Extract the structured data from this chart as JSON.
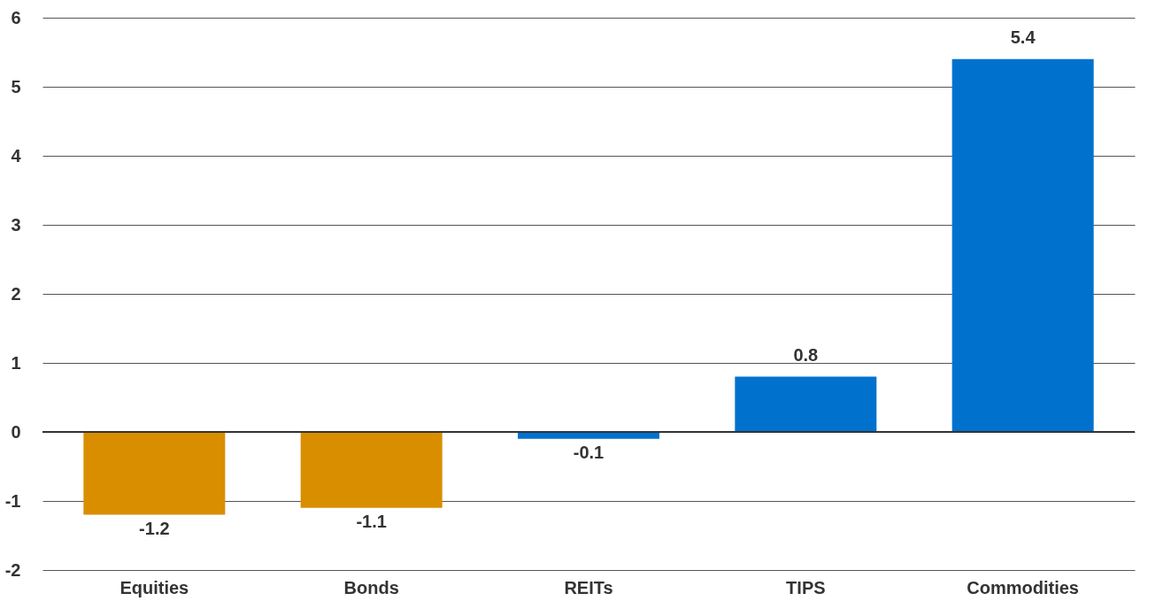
{
  "chart_data": {
    "type": "bar",
    "categories": [
      "Equities",
      "Bonds",
      "REITs",
      "TIPS",
      "Commodities"
    ],
    "values": [
      -1.2,
      -1.1,
      -0.1,
      0.8,
      5.4
    ],
    "colors": [
      "#d98e00",
      "#d98e00",
      "#0072ce",
      "#0072ce",
      "#0072ce"
    ],
    "ylim": [
      -2,
      6
    ],
    "yticks": [
      -2,
      -1,
      0,
      1,
      2,
      3,
      4,
      5,
      6
    ],
    "grid": "y",
    "data_labels": true,
    "ref_lines": [
      {
        "axis": "y",
        "value": 0,
        "color": "#333333"
      }
    ]
  }
}
